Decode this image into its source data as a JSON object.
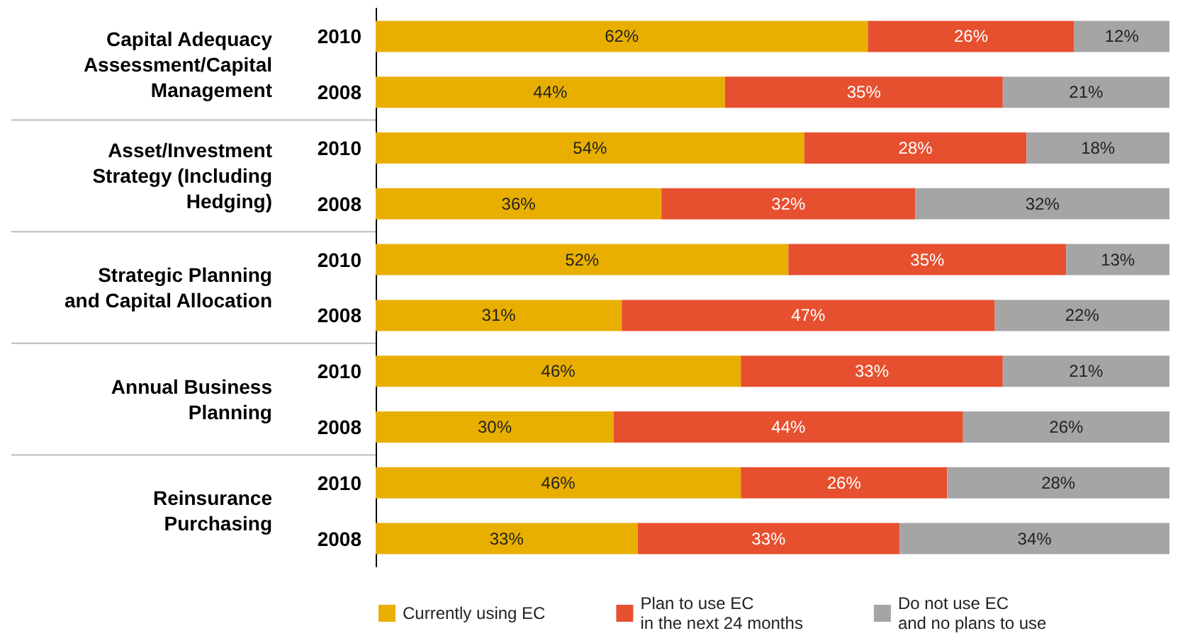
{
  "chart_data": {
    "type": "bar",
    "orientation": "horizontal",
    "stacked": true,
    "legend": "bottom",
    "categories": [
      "2010",
      "2008",
      "2010",
      "2008",
      "2010",
      "2008",
      "2010",
      "2008",
      "2010",
      "2008"
    ],
    "annotations": [
      "Capital Adequacy\nAssessment/Capital\nManagement",
      "Asset/Investment\nStrategy (Including\nHedging)",
      "Strategic Planning\nand Capital Allocation",
      "Annual Business\nPlanning",
      "Reinsurance\nPurchasing"
    ],
    "series": [
      {
        "name": "Currently using EC",
        "color": "#e8af00",
        "values": [
          62,
          44,
          54,
          36,
          52,
          31,
          46,
          30,
          46,
          33
        ],
        "value_labels": [
          "62%",
          "44%",
          "54%",
          "36%",
          "52%",
          "31%",
          "46%",
          "30%",
          "46%",
          "33%"
        ]
      },
      {
        "name": "Plan to use EC\nin the next 24 months",
        "color": "#e6502f",
        "values": [
          26,
          35,
          28,
          32,
          35,
          47,
          33,
          44,
          26,
          33
        ],
        "value_labels": [
          "26%",
          "35%",
          "28%",
          "32%",
          "35%",
          "47%",
          "33%",
          "44%",
          "26%",
          "33%"
        ]
      },
      {
        "name": "Do not use EC\nand no plans to use",
        "color": "#a5a5a5",
        "values": [
          12,
          21,
          18,
          32,
          13,
          22,
          21,
          26,
          28,
          34
        ],
        "value_labels": [
          "12%",
          "21%",
          "18%",
          "32%",
          "13%",
          "22%",
          "21%",
          "26%",
          "28%",
          "34%"
        ]
      }
    ]
  }
}
